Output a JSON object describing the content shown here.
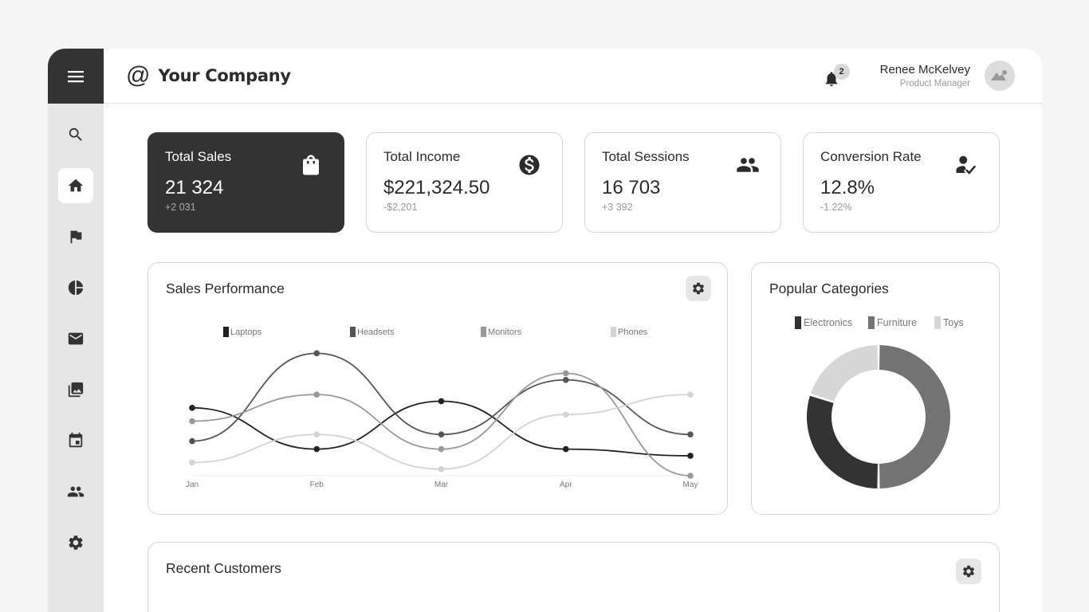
{
  "header": {
    "brand_symbol": "@",
    "brand_name": "Your Company",
    "notifications_count": "2",
    "user_name": "Renee McKelvey",
    "user_role": "Product Manager"
  },
  "sidebar": {
    "items": [
      {
        "name": "search",
        "active": false
      },
      {
        "name": "home",
        "active": true
      },
      {
        "name": "flag",
        "active": false
      },
      {
        "name": "pie-chart",
        "active": false
      },
      {
        "name": "mail",
        "active": false
      },
      {
        "name": "gallery",
        "active": false
      },
      {
        "name": "calendar",
        "active": false
      },
      {
        "name": "users",
        "active": false
      },
      {
        "name": "settings",
        "active": false
      }
    ]
  },
  "stats": [
    {
      "title": "Total Sales",
      "value": "21 324",
      "change": "+2 031",
      "icon": "shopping-bag-icon"
    },
    {
      "title": "Total Income",
      "value": "$221,324.50",
      "change": "-$2,201",
      "icon": "dollar-icon"
    },
    {
      "title": "Total Sessions",
      "value": "16 703",
      "change": "+3 392",
      "icon": "users-icon"
    },
    {
      "title": "Conversion Rate",
      "value": "12.8%",
      "change": "-1.22%",
      "icon": "user-check-icon"
    }
  ],
  "sales_performance": {
    "title": "Sales Performance"
  },
  "popular_categories": {
    "title": "Popular Categories"
  },
  "recent_customers": {
    "title": "Recent Customers"
  },
  "colors": {
    "dark": "#333333",
    "sidebar_bg": "#e6e6e6",
    "laptops": "#222222",
    "headsets": "#555555",
    "monitors": "#999999",
    "phones": "#d3d3d3",
    "electronics": "#333333",
    "furniture": "#737373",
    "toys": "#d6d6d6"
  },
  "chart_data": [
    {
      "type": "line",
      "title": "Sales Performance",
      "categories": [
        "Jan",
        "Feb",
        "Mar",
        "Apr",
        "May"
      ],
      "series": [
        {
          "name": "Laptops",
          "values": [
            51,
            20,
            56,
            20,
            15
          ]
        },
        {
          "name": "Headsets",
          "values": [
            26,
            92,
            31,
            72,
            31
          ]
        },
        {
          "name": "Monitors",
          "values": [
            41,
            61,
            20,
            77,
            0
          ]
        },
        {
          "name": "Phones",
          "values": [
            10,
            31,
            5,
            46,
            61
          ]
        }
      ],
      "xlabel": "",
      "ylabel": "",
      "ylim": [
        0,
        100
      ],
      "grid": false,
      "legend_position": "top",
      "smooth": true
    },
    {
      "type": "pie",
      "donut": true,
      "title": "Popular Categories",
      "categories": [
        "Electronics",
        "Furniture",
        "Toys"
      ],
      "values": [
        30,
        50,
        20
      ],
      "legend_position": "top"
    }
  ]
}
